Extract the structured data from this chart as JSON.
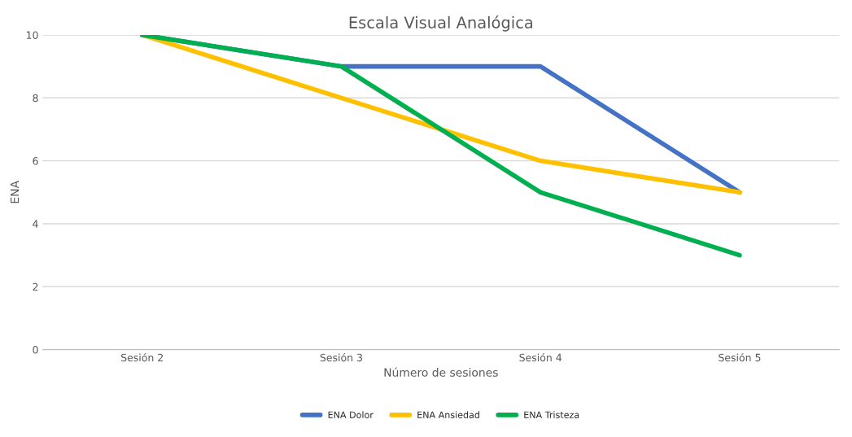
{
  "chart_data": {
    "type": "line",
    "title": "Escala Visual Analógica",
    "xlabel": "Número de sesiones",
    "ylabel": "ENA",
    "categories": [
      "Sesión 2",
      "Sesión 3",
      "Sesión 4",
      "Sesión 5"
    ],
    "series": [
      {
        "name": "ENA Dolor",
        "color": "#4472c4",
        "values": [
          10,
          9,
          9,
          5
        ]
      },
      {
        "name": "ENA Ansiedad",
        "color": "#ffc000",
        "values": [
          10,
          8,
          6,
          5
        ]
      },
      {
        "name": "ENA Tristeza",
        "color": "#00b050",
        "values": [
          10,
          9,
          5,
          3
        ]
      }
    ],
    "ylim": [
      0,
      10
    ],
    "yticks": [
      0,
      2,
      4,
      6,
      8,
      10
    ],
    "grid": "y",
    "legend": "bottom",
    "marker": "none",
    "line_style": "solid"
  }
}
